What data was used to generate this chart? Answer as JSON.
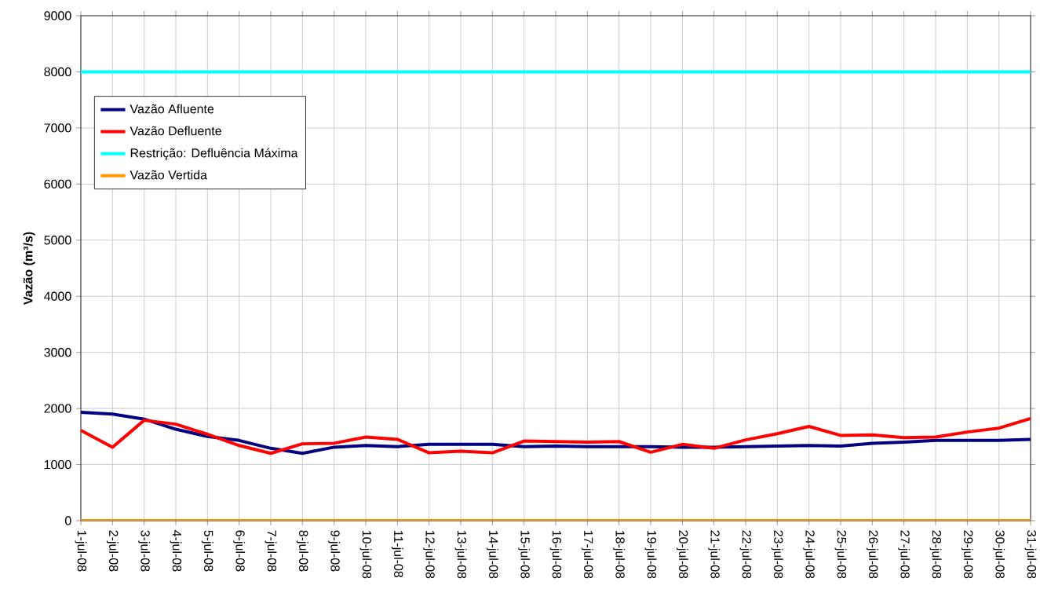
{
  "chart_data": {
    "type": "line",
    "ylabel": "Vazão (m³/s)",
    "categories": [
      "1-jul-08",
      "2-jul-08",
      "3-jul-08",
      "4-jul-08",
      "5-jul-08",
      "6-jul-08",
      "7-jul-08",
      "8-jul-08",
      "9-jul-08",
      "10-jul-08",
      "11-jul-08",
      "12-jul-08",
      "13-jul-08",
      "14-jul-08",
      "15-jul-08",
      "16-jul-08",
      "17-jul-08",
      "18-jul-08",
      "19-jul-08",
      "20-jul-08",
      "21-jul-08",
      "22-jul-08",
      "23-jul-08",
      "24-jul-08",
      "25-jul-08",
      "26-jul-08",
      "27-jul-08",
      "28-jul-08",
      "29-jul-08",
      "30-jul-08",
      "31-jul-08"
    ],
    "series": [
      {
        "name": "Vazão Afluente",
        "color": "#000080",
        "values": [
          1930,
          1900,
          1810,
          1630,
          1500,
          1430,
          1290,
          1200,
          1310,
          1340,
          1320,
          1360,
          1360,
          1360,
          1320,
          1330,
          1320,
          1320,
          1320,
          1310,
          1310,
          1320,
          1330,
          1340,
          1330,
          1380,
          1400,
          1430,
          1430,
          1430,
          1450
        ]
      },
      {
        "name": "Vazão Defluente",
        "color": "#ff0000",
        "values": [
          1610,
          1310,
          1790,
          1720,
          1540,
          1340,
          1200,
          1370,
          1380,
          1490,
          1450,
          1210,
          1240,
          1210,
          1420,
          1410,
          1400,
          1410,
          1220,
          1360,
          1290,
          1440,
          1550,
          1680,
          1520,
          1530,
          1480,
          1490,
          1580,
          1650,
          1820
        ]
      },
      {
        "name": "Restrição: Defluência Máxima",
        "color": "#00ffff",
        "values": [
          8000,
          8000,
          8000,
          8000,
          8000,
          8000,
          8000,
          8000,
          8000,
          8000,
          8000,
          8000,
          8000,
          8000,
          8000,
          8000,
          8000,
          8000,
          8000,
          8000,
          8000,
          8000,
          8000,
          8000,
          8000,
          8000,
          8000,
          8000,
          8000,
          8000,
          8000
        ]
      },
      {
        "name": "Vazão Vertida",
        "color": "#ff9900",
        "values": [
          0,
          0,
          0,
          0,
          0,
          0,
          0,
          0,
          0,
          0,
          0,
          0,
          0,
          0,
          0,
          0,
          0,
          0,
          0,
          0,
          0,
          0,
          0,
          0,
          0,
          0,
          0,
          0,
          0,
          0,
          0
        ]
      }
    ],
    "ylim": [
      0,
      9000
    ],
    "yticks": [
      0,
      1000,
      2000,
      3000,
      4000,
      5000,
      6000,
      7000,
      8000,
      9000
    ],
    "grid": true,
    "legend": "top left",
    "marker": "none",
    "line_style": "solid"
  }
}
